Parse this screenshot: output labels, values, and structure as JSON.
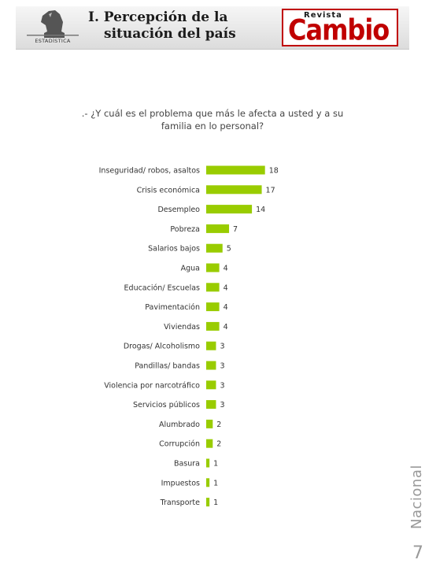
{
  "header": {
    "title_line1": "I. Percepción de la",
    "title_line2": "situación del país",
    "left_logo_text": "ESTADÍSTICA",
    "right_logo_small": "Revista",
    "right_logo_big": "Cambio"
  },
  "question": {
    "line1": ".- ¿Y cuál es el problema que más le afecta a usted y a su",
    "line2": "familia en lo personal?"
  },
  "side_label": "Nacional",
  "page_number": "7",
  "colors": {
    "bar": "#99cc00",
    "title_red": "#c00000"
  },
  "chart_data": {
    "type": "bar",
    "orientation": "horizontal",
    "categories": [
      "Inseguridad/ robos, asaltos",
      "Crisis económica",
      "Desempleo",
      "Pobreza",
      "Salarios bajos",
      "Agua",
      "Educación/ Escuelas",
      "Pavimentación",
      "Viviendas",
      "Drogas/ Alcoholismo",
      "Pandillas/ bandas",
      "Violencia por narcotráfico",
      "Servicios públicos",
      "Alumbrado",
      "Corrupción",
      "Basura",
      "Impuestos",
      "Transporte"
    ],
    "values": [
      18,
      17,
      14,
      7,
      5,
      4,
      4,
      4,
      4,
      3,
      3,
      3,
      3,
      2,
      2,
      1,
      1,
      1
    ],
    "title": "",
    "xlabel": "",
    "ylabel": "",
    "grid": false,
    "data_labels": true
  }
}
